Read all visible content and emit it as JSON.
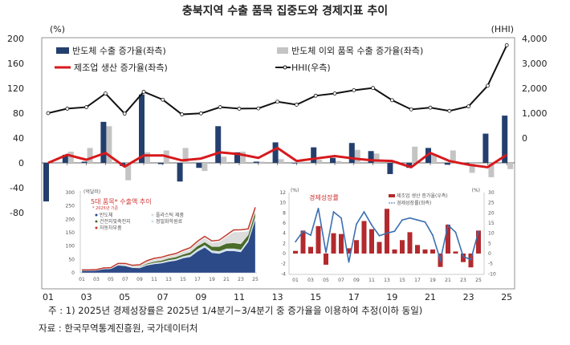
{
  "chart_data": [
    {
      "type": "bar+line",
      "title": "충북지역 수출 품목 집중도와 경제지표 추이",
      "left_unit": "(%)",
      "right_unit": "(HHI)",
      "categories": [
        "01",
        "02",
        "03",
        "04",
        "05",
        "06",
        "07",
        "08",
        "09",
        "10",
        "11",
        "12",
        "13",
        "14",
        "15",
        "16",
        "17",
        "18",
        "19",
        "20",
        "21",
        "22",
        "23",
        "24",
        "25"
      ],
      "x_tick_labels": [
        "01",
        "03",
        "05",
        "07",
        "09",
        "11",
        "13",
        "15",
        "17",
        "19",
        "21",
        "23",
        "25"
      ],
      "left_ticks": [
        "200",
        "160",
        "120",
        "80",
        "40",
        "0",
        "-40",
        "-80"
      ],
      "left_ylim": [
        -80,
        200
      ],
      "right_ticks": [
        "4,000",
        "3,000",
        "2,000",
        "1,000",
        "0"
      ],
      "right_ylim": [
        0,
        4000
      ],
      "legend_placement": "top-left inside",
      "series": [
        {
          "name": "반도체 수출 증가율(좌측)",
          "type": "bar",
          "axis": "left",
          "color": "#243f6e",
          "values": [
            -62,
            13,
            2,
            66,
            -5,
            110,
            -2,
            -30,
            -8,
            59,
            17,
            2,
            33,
            -1,
            25,
            8,
            32,
            19,
            -18,
            -8,
            24,
            -3,
            -2,
            47,
            76
          ]
        },
        {
          "name": "반도체 이외 품목 수출 증가율(좌측)",
          "type": "bar",
          "axis": "left",
          "color": "#c4c4c4",
          "values": [
            0,
            18,
            24,
            59,
            -28,
            17,
            20,
            24,
            -13,
            10,
            18,
            2,
            6,
            3,
            5,
            3,
            21,
            15,
            3,
            26,
            13,
            20,
            -16,
            -23,
            -10
          ]
        },
        {
          "name": "제조업 생산 증가율(좌측)",
          "type": "line",
          "axis": "left",
          "color": "#d7191c",
          "values": [
            0,
            13,
            5,
            16,
            -6,
            12,
            12,
            4,
            7,
            17,
            14,
            8,
            24,
            3,
            7,
            11,
            7,
            4,
            3,
            -7,
            16,
            3,
            -3,
            -7,
            13
          ]
        },
        {
          "name": "HHI(우측)",
          "type": "line",
          "axis": "right",
          "color": "#111111",
          "values": [
            1000,
            1180,
            1240,
            1790,
            980,
            1860,
            1540,
            950,
            990,
            1240,
            1180,
            1190,
            1460,
            1340,
            1700,
            1790,
            1920,
            2010,
            1520,
            1150,
            1220,
            1090,
            1270,
            2100,
            3730
          ]
        }
      ]
    },
    {
      "type": "area",
      "title": "5대 품목* 수출액 추이",
      "subtitle": "* 2025년 기준",
      "unit": "(억달러)",
      "ylim": [
        0,
        300
      ],
      "y_ticks": [
        "300",
        "250",
        "200",
        "150",
        "100",
        "50",
        "0"
      ],
      "x_tick_labels": [
        "01",
        "03",
        "05",
        "07",
        "09",
        "11",
        "13",
        "15",
        "17",
        "19",
        "21",
        "23",
        "25"
      ],
      "stacked": true,
      "series": [
        {
          "name": "반도체",
          "color": "#2b4a87",
          "values": [
            8,
            8,
            9,
            14,
            15,
            28,
            26,
            19,
            18,
            28,
            33,
            36,
            42,
            46,
            55,
            60,
            80,
            95,
            75,
            72,
            82,
            82,
            78,
            115,
            200
          ]
        },
        {
          "name": "정밀화학원료",
          "color": "#cfe0ee",
          "values": [
            1,
            1,
            1,
            1,
            1,
            2,
            2,
            2,
            2,
            3,
            4,
            4,
            5,
            5,
            6,
            7,
            8,
            8,
            8,
            8,
            8,
            8,
            8,
            8,
            8
          ]
        },
        {
          "name": "건전지및축전지",
          "color": "#4a6b2a",
          "values": [
            0,
            0,
            0,
            0,
            0,
            1,
            1,
            1,
            2,
            4,
            5,
            6,
            7,
            8,
            8,
            10,
            12,
            12,
            15,
            18,
            20,
            22,
            22,
            18,
            20
          ]
        },
        {
          "name": "플라스틱 제품",
          "color": "#dcdcdc",
          "values": [
            1,
            1,
            1,
            2,
            2,
            3,
            4,
            4,
            5,
            6,
            8,
            8,
            8,
            9,
            10,
            12,
            14,
            15,
            15,
            18,
            25,
            40,
            45,
            15,
            10
          ]
        },
        {
          "name": "자동차부품",
          "color": "#c0392b",
          "values": [
            1,
            1,
            1,
            1,
            1,
            1,
            2,
            2,
            3,
            4,
            4,
            4,
            4,
            4,
            5,
            5,
            4,
            6,
            6,
            6,
            6,
            8,
            8,
            8,
            7
          ]
        }
      ]
    },
    {
      "type": "bar+line",
      "title": "경제성장률",
      "left_unit": "(%)",
      "right_unit": "(%)",
      "left_ylim": [
        -4,
        12
      ],
      "right_ylim": [
        -10,
        30
      ],
      "left_ticks": [
        "12",
        "10",
        "8",
        "6",
        "4",
        "2",
        "0",
        "-2",
        "-4"
      ],
      "right_ticks": [
        "30",
        "25",
        "20",
        "15",
        "10",
        "5",
        "0",
        "-5",
        "-10"
      ],
      "x_tick_labels": [
        "01",
        "03",
        "05",
        "07",
        "09",
        "11",
        "13",
        "15",
        "17",
        "19",
        "21",
        "23",
        "25"
      ],
      "series": [
        {
          "name": "제조업 생산 증가율(우측)",
          "type": "bar",
          "axis": "right",
          "color": "#b22a2e",
          "values": [
            1.3,
            11.3,
            3.3,
            13.5,
            -5.5,
            10,
            9.6,
            2.6,
            6.6,
            16,
            12,
            5.7,
            22,
            2,
            6.6,
            10.5,
            4.2,
            2,
            2,
            -6.6,
            14.2,
            1,
            -4.2,
            -6.8,
            11.3
          ]
        },
        {
          "name": "경제성장률(좌측)",
          "type": "line",
          "axis": "left",
          "color": "#3a6fb0",
          "values": [
            2.3,
            4.4,
            3.6,
            8.9,
            0.2,
            8.2,
            7.0,
            -1.7,
            5.8,
            8.2,
            5.6,
            3.5,
            4.0,
            4.4,
            6.6,
            7.0,
            6.6,
            6.2,
            3.6,
            -1.3,
            5.6,
            4.2,
            -0.6,
            -1.2,
            4.3
          ]
        }
      ]
    }
  ],
  "footnote": "주 : 1) 2025년 경제성장률은 2025년 1/4분기~3/4분기 중 증가율을 이용하여 추정(이하 동일)",
  "source": "자료 : 한국무역통계진흥원, 국가데이터처"
}
